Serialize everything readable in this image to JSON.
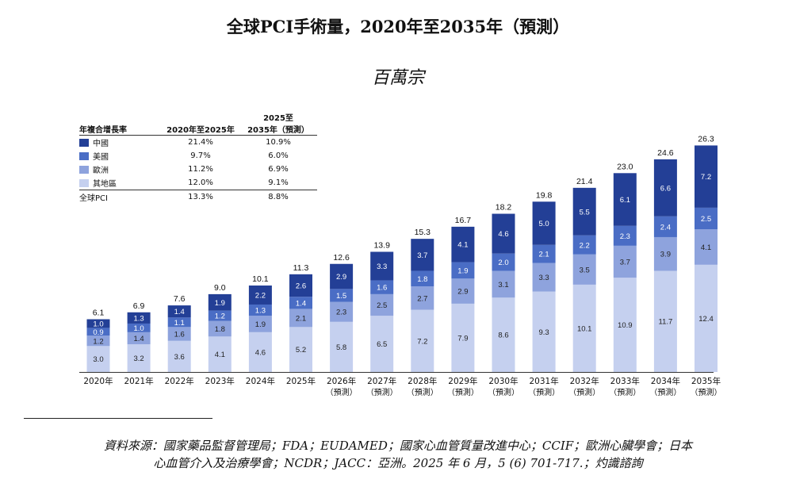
{
  "title": "全球PCI手術量，2020年至2035年（預測）",
  "unit": "百萬宗",
  "legend": {
    "header_label": "年複合增長率",
    "col1": "2020年至2025年",
    "col2_line1": "2025至",
    "col2_line2": "2035年（預測）",
    "rows": [
      {
        "name": "中國",
        "color": "#233f96",
        "c1": "21.4%",
        "c2": "10.9%"
      },
      {
        "name": "美國",
        "color": "#4a6dc5",
        "c1": "9.7%",
        "c2": "6.0%"
      },
      {
        "name": "歐洲",
        "color": "#8ea3dd",
        "c2": "6.9%",
        "c1": "11.2%"
      },
      {
        "name": "其地區",
        "color": "#c5d0ef",
        "c1": "12.0%",
        "c2": "9.1%"
      }
    ],
    "total": {
      "name": "全球PCI",
      "c1": "13.3%",
      "c2": "8.8%"
    }
  },
  "chart_data": {
    "type": "bar",
    "stacked": true,
    "categories": [
      "2020年",
      "2021年",
      "2022年",
      "2023年",
      "2024年",
      "2025年",
      "2026年",
      "2027年",
      "2028年",
      "2029年",
      "2030年",
      "2031年",
      "2032年",
      "2033年",
      "2034年",
      "2035年"
    ],
    "forecast_note": "（預測）",
    "forecast_from_index": 6,
    "series": [
      {
        "name": "其地區",
        "color": "#c5d0ef",
        "values": [
          3.0,
          3.2,
          3.6,
          4.1,
          4.6,
          5.2,
          5.8,
          6.5,
          7.2,
          7.9,
          8.6,
          9.3,
          10.1,
          10.9,
          11.7,
          12.4
        ]
      },
      {
        "name": "歐洲",
        "color": "#8ea3dd",
        "values": [
          1.2,
          1.4,
          1.6,
          1.8,
          1.9,
          2.1,
          2.3,
          2.5,
          2.7,
          2.9,
          3.1,
          3.3,
          3.5,
          3.7,
          3.9,
          4.1
        ]
      },
      {
        "name": "美國",
        "color": "#4a6dc5",
        "values": [
          0.9,
          1.0,
          1.1,
          1.2,
          1.3,
          1.4,
          1.5,
          1.6,
          1.8,
          1.9,
          2.0,
          2.1,
          2.2,
          2.3,
          2.4,
          2.5
        ]
      },
      {
        "name": "中國",
        "color": "#233f96",
        "values": [
          1.0,
          1.3,
          1.4,
          1.9,
          2.2,
          2.6,
          2.9,
          3.3,
          3.7,
          4.1,
          4.6,
          5.0,
          5.5,
          6.1,
          6.6,
          7.2
        ]
      }
    ],
    "totals": [
      "6.1",
      "6.9",
      "7.6",
      "9.0",
      "10.1",
      "11.3",
      "12.6",
      "13.9",
      "15.3",
      "16.7",
      "18.2",
      "19.8",
      "21.4",
      "23.0",
      "24.6",
      "26.3"
    ]
  },
  "source_line1": "資料來源：國家藥品監督管理局；FDA；EUDAMED；國家心血管質量改進中心；CCIF；歐洲心臟學會；日本",
  "source_line2": "心血管介入及治療學會；NCDR；JACC：亞洲。2025 年 6 月，5 (6) 701-717.；灼識諮詢"
}
